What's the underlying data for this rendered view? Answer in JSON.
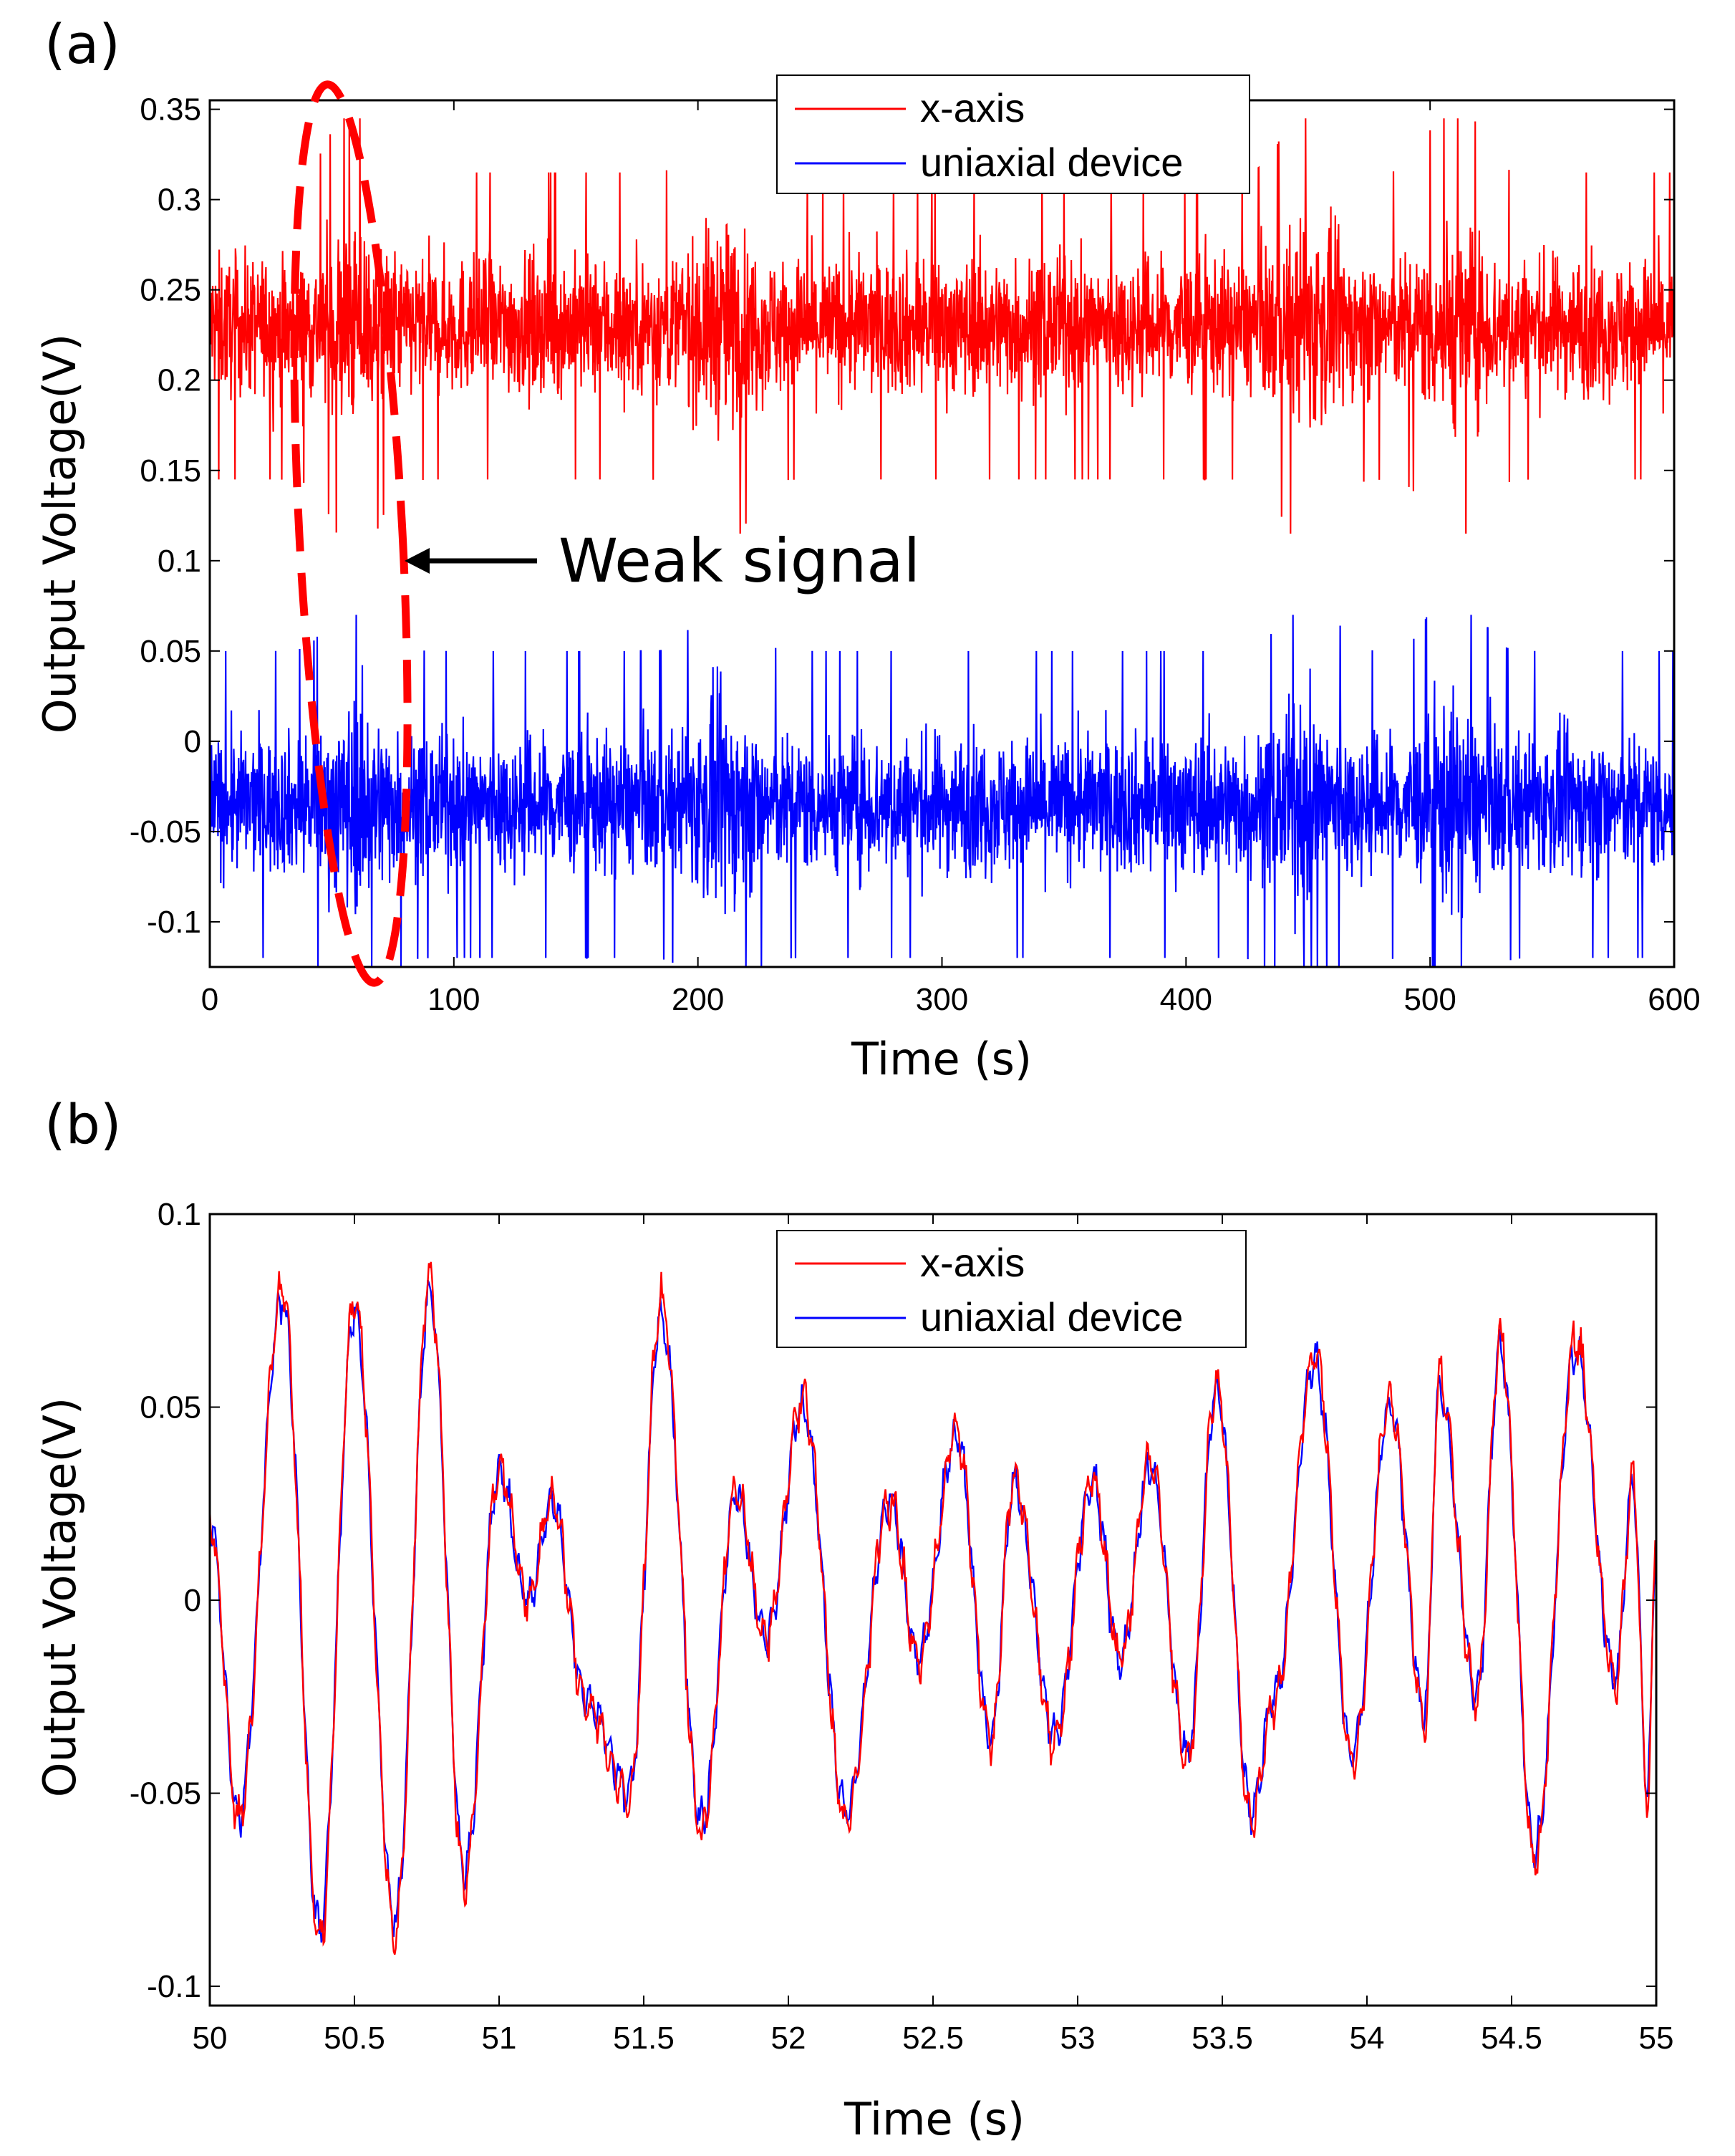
{
  "chart_data": [
    {
      "panel_label": "(a)",
      "type": "line",
      "xlabel": "Time (s)",
      "ylabel": "Output Voltage(V)",
      "xlim": [
        0,
        600
      ],
      "ylim": [
        -0.125,
        0.355
      ],
      "xticks": [
        0,
        100,
        200,
        300,
        400,
        500,
        600
      ],
      "xtick_labels": [
        "0",
        "100",
        "200",
        "300",
        "400",
        "500",
        "600"
      ],
      "yticks": [
        -0.1,
        -0.05,
        0,
        0.05,
        0.1,
        0.15,
        0.2,
        0.25,
        0.3,
        0.35
      ],
      "ytick_labels": [
        "-0.1",
        "-0.05",
        "0",
        "0.05",
        "0.1",
        "0.15",
        "0.2",
        "0.25",
        "0.3",
        "0.35"
      ],
      "legend_position": "top-right",
      "series": [
        {
          "name": "x-axis",
          "color": "#ff0000",
          "mean": 0.23,
          "typical_range": [
            0.18,
            0.28
          ],
          "min": 0.115,
          "max": 0.345,
          "burst_times": [
            60,
            210,
            450,
            510
          ]
        },
        {
          "name": "uniaxial device",
          "color": "#0000ff",
          "mean": -0.035,
          "typical_range": [
            -0.085,
            0.015
          ],
          "min": -0.125,
          "max": 0.07,
          "burst_times": [
            60,
            210,
            450,
            510
          ]
        }
      ],
      "annotation": {
        "text": "Weak signal",
        "ellipse_center_x": 60,
        "ellipse_center_y": 0.115,
        "color": "#ff0000"
      }
    },
    {
      "panel_label": "(b)",
      "type": "line",
      "xlabel": "Time (s)",
      "ylabel": "Output Voltage(V)",
      "xlim": [
        50,
        55
      ],
      "ylim": [
        -0.105,
        0.1
      ],
      "xticks": [
        50,
        50.5,
        51,
        51.5,
        52,
        52.5,
        53,
        53.5,
        54,
        54.5,
        55
      ],
      "xtick_labels": [
        "50",
        "50.5",
        "51",
        "51.5",
        "52",
        "52.5",
        "53",
        "53.5",
        "54",
        "54.5",
        "55"
      ],
      "yticks": [
        -0.1,
        -0.05,
        0,
        0.05,
        0.1
      ],
      "ytick_labels": [
        "-0.1",
        "-0.05",
        "0",
        "0.05",
        "0.1"
      ],
      "legend_position": "top-right",
      "series": [
        {
          "name": "x-axis",
          "color": "#ff0000"
        },
        {
          "name": "uniaxial device",
          "color": "#0000ff"
        }
      ],
      "peaks": [
        {
          "t": 50.0,
          "v": 0.02
        },
        {
          "t": 50.1,
          "v": -0.055
        },
        {
          "t": 50.25,
          "v": 0.078
        },
        {
          "t": 50.38,
          "v": -0.085
        },
        {
          "t": 50.5,
          "v": 0.075
        },
        {
          "t": 50.64,
          "v": -0.083
        },
        {
          "t": 50.76,
          "v": 0.08
        },
        {
          "t": 50.88,
          "v": -0.07
        },
        {
          "t": 51.0,
          "v": 0.033
        },
        {
          "t": 51.1,
          "v": 0.0
        },
        {
          "t": 51.18,
          "v": 0.025
        },
        {
          "t": 51.3,
          "v": -0.025
        },
        {
          "t": 51.45,
          "v": -0.05
        },
        {
          "t": 51.56,
          "v": 0.075
        },
        {
          "t": 51.7,
          "v": -0.058
        },
        {
          "t": 51.82,
          "v": 0.028
        },
        {
          "t": 51.92,
          "v": -0.01
        },
        {
          "t": 52.05,
          "v": 0.05
        },
        {
          "t": 52.2,
          "v": -0.055
        },
        {
          "t": 52.35,
          "v": 0.025
        },
        {
          "t": 52.45,
          "v": -0.015
        },
        {
          "t": 52.58,
          "v": 0.042
        },
        {
          "t": 52.7,
          "v": -0.035
        },
        {
          "t": 52.78,
          "v": 0.03
        },
        {
          "t": 52.92,
          "v": -0.035
        },
        {
          "t": 53.05,
          "v": 0.03
        },
        {
          "t": 53.15,
          "v": -0.015
        },
        {
          "t": 53.25,
          "v": 0.035
        },
        {
          "t": 53.38,
          "v": -0.04
        },
        {
          "t": 53.48,
          "v": 0.055
        },
        {
          "t": 53.6,
          "v": -0.055
        },
        {
          "t": 53.68,
          "v": -0.025
        },
        {
          "t": 53.82,
          "v": 0.062
        },
        {
          "t": 53.95,
          "v": -0.04
        },
        {
          "t": 54.08,
          "v": 0.05
        },
        {
          "t": 54.2,
          "v": -0.03
        },
        {
          "t": 54.25,
          "v": 0.055
        },
        {
          "t": 54.38,
          "v": -0.025
        },
        {
          "t": 54.46,
          "v": 0.065
        },
        {
          "t": 54.58,
          "v": -0.065
        },
        {
          "t": 54.72,
          "v": 0.065
        },
        {
          "t": 54.86,
          "v": -0.02
        },
        {
          "t": 54.92,
          "v": 0.03
        },
        {
          "t": 54.97,
          "v": -0.05
        },
        {
          "t": 55.0,
          "v": 0.015
        }
      ]
    }
  ]
}
